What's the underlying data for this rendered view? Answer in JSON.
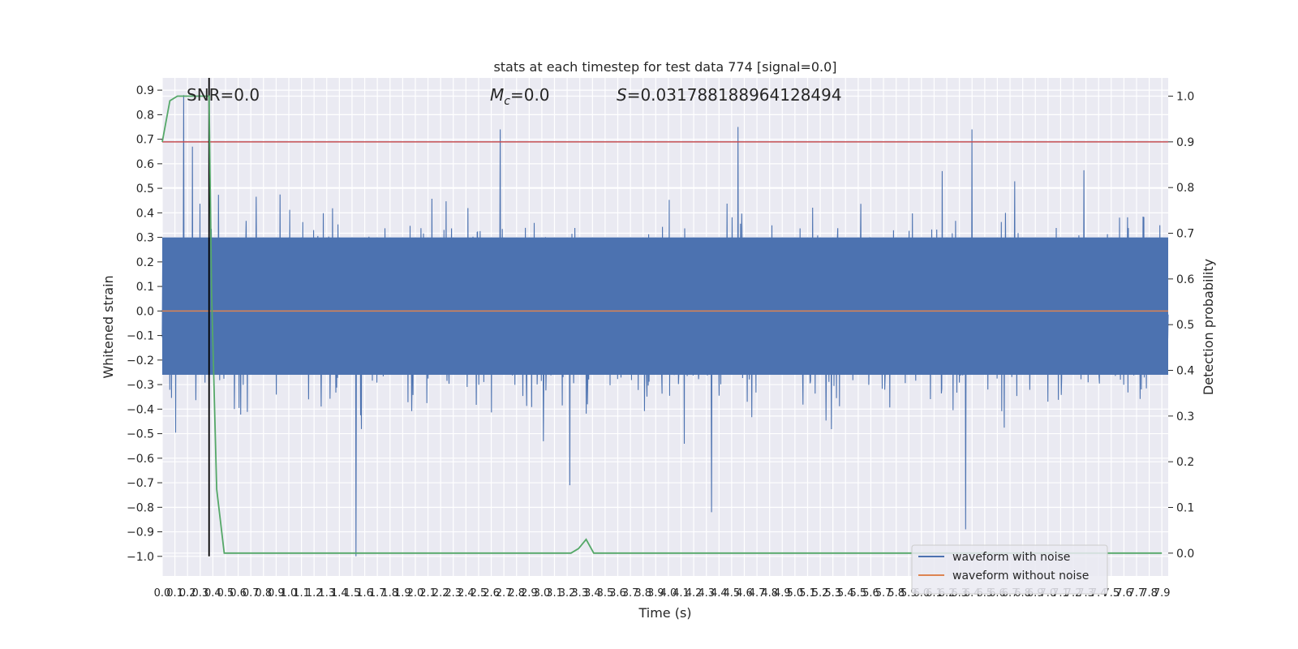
{
  "chart_data": {
    "type": "line",
    "title": "stats at each timestep for test data 774 [signal=0.0]",
    "xlabel": "Time (s)",
    "ylabel": "Whitened strain",
    "y2label": "Detection probability",
    "xlim": [
      0.0,
      7.95
    ],
    "ylim": [
      -1.08,
      0.95
    ],
    "y2lim": [
      -0.05,
      1.04
    ],
    "xticks": [
      0.0,
      0.1,
      0.2,
      0.3,
      0.4,
      0.5,
      0.6,
      0.7,
      0.8,
      0.9,
      1.0,
      1.1,
      1.2,
      1.3,
      1.4,
      1.5,
      1.6,
      1.7,
      1.8,
      1.9,
      2.0,
      2.1,
      2.2,
      2.3,
      2.4,
      2.5,
      2.6,
      2.7,
      2.8,
      2.9,
      3.0,
      3.1,
      3.2,
      3.3,
      3.4,
      3.5,
      3.6,
      3.7,
      3.8,
      3.9,
      4.0,
      4.1,
      4.2,
      4.3,
      4.4,
      4.5,
      4.6,
      4.7,
      4.8,
      4.9,
      5.0,
      5.1,
      5.2,
      5.3,
      5.4,
      5.5,
      5.6,
      5.7,
      5.8,
      5.9,
      6.0,
      6.1,
      6.2,
      6.3,
      6.4,
      6.5,
      6.6,
      6.7,
      6.8,
      6.9,
      7.0,
      7.1,
      7.2,
      7.3,
      7.4,
      7.5,
      7.6,
      7.7,
      7.8,
      7.9
    ],
    "yticks": [
      -1.0,
      -0.9,
      -0.8,
      -0.7,
      -0.6,
      -0.5,
      -0.4,
      -0.3,
      -0.2,
      -0.1,
      0.0,
      0.1,
      0.2,
      0.3,
      0.4,
      0.5,
      0.6,
      0.7,
      0.8,
      0.9
    ],
    "y2ticks": [
      0.0,
      0.1,
      0.2,
      0.3,
      0.4,
      0.5,
      0.6,
      0.7,
      0.8,
      0.9,
      1.0
    ],
    "annotations": {
      "snr": "SNR=0.0",
      "mc": "=0.0",
      "mc_symbol": "M",
      "mc_sub": "c",
      "s_value": "=0.031788188964128494",
      "s_symbol": "S"
    },
    "threshold": 0.9,
    "marker_time": 0.37,
    "series": [
      {
        "name": "waveform with noise",
        "color": "#4c72b0",
        "style": "dense-noise",
        "band": [
          -0.26,
          0.3
        ],
        "noise_sigma": 0.16,
        "peaks": [
          {
            "x": 0.17,
            "y": 0.88
          },
          {
            "x": 0.24,
            "y": 0.67
          },
          {
            "x": 1.53,
            "y": -1.0
          },
          {
            "x": 2.67,
            "y": 0.74
          },
          {
            "x": 3.22,
            "y": -0.71
          },
          {
            "x": 4.34,
            "y": -0.82
          },
          {
            "x": 4.55,
            "y": 0.75
          },
          {
            "x": 6.35,
            "y": -0.89
          },
          {
            "x": 6.4,
            "y": 0.74
          }
        ]
      },
      {
        "name": "waveform without noise",
        "color": "#dd8452",
        "x": [
          0.0,
          7.95
        ],
        "y": [
          0.0,
          0.0
        ]
      },
      {
        "name": "detection probability",
        "color": "#55a868",
        "axis": "right",
        "x": [
          0.0,
          0.06,
          0.12,
          0.18,
          0.24,
          0.3,
          0.37,
          0.39,
          0.43,
          0.49,
          0.6,
          1.0,
          2.0,
          3.0,
          3.23,
          3.29,
          3.35,
          3.41,
          3.5,
          4.0,
          5.0,
          6.0,
          7.0,
          7.9
        ],
        "y": [
          0.9,
          0.99,
          1.0,
          1.0,
          1.0,
          1.0,
          1.0,
          0.57,
          0.14,
          0.0,
          0.0,
          0.0,
          0.0,
          0.0,
          0.0,
          0.01,
          0.03,
          0.0,
          0.0,
          0.0,
          0.0,
          0.0,
          0.0,
          0.0
        ]
      }
    ],
    "legend": {
      "position": "lower-right",
      "entries": [
        "waveform with noise",
        "waveform without noise"
      ]
    },
    "colors": {
      "background": "#eaeaf2",
      "grid": "#ffffff",
      "threshold": "#c44e52",
      "marker": "#000000"
    },
    "grid": true
  }
}
